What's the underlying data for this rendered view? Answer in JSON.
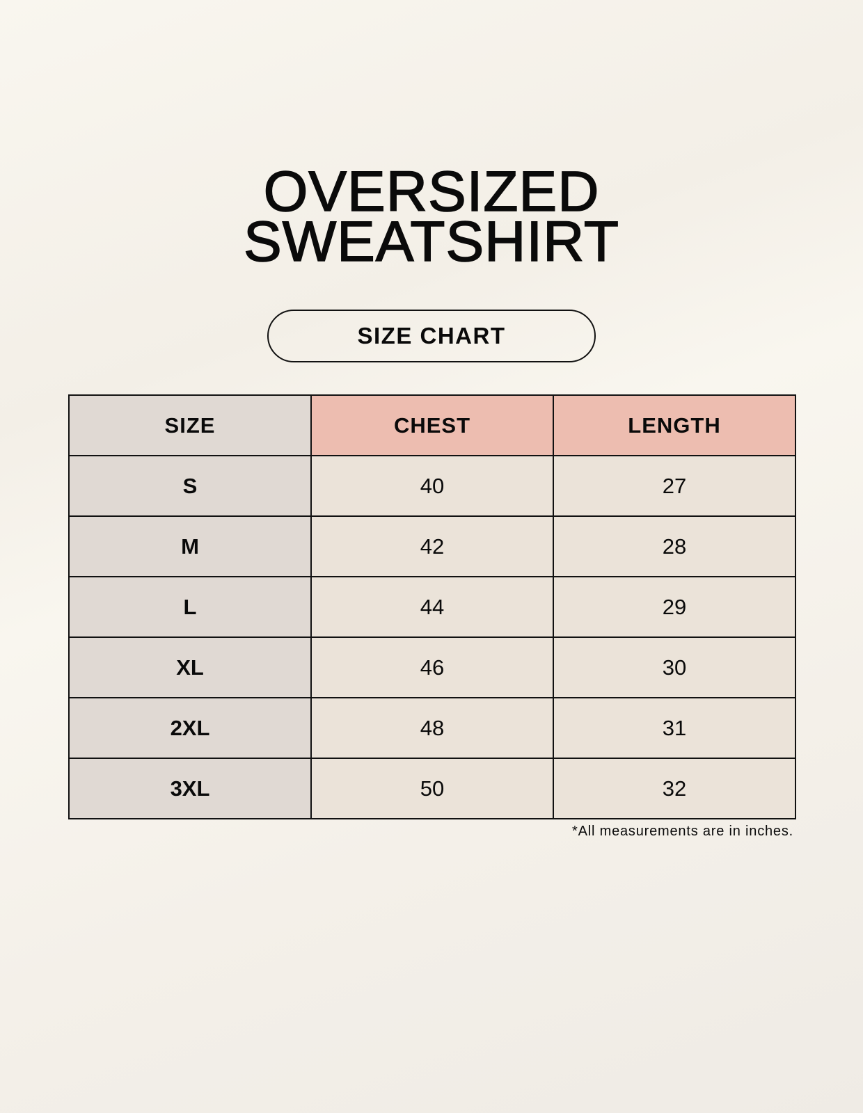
{
  "title_line1": "OVERSIZED",
  "title_line2": "SWEATSHIRT",
  "badge": "SIZE CHART",
  "table": {
    "headers": [
      "SIZE",
      "CHEST",
      "LENGTH"
    ],
    "rows": [
      [
        "S",
        "40",
        "27"
      ],
      [
        "M",
        "42",
        "28"
      ],
      [
        "L",
        "44",
        "29"
      ],
      [
        "XL",
        "46",
        "30"
      ],
      [
        "2XL",
        "48",
        "31"
      ],
      [
        "3XL",
        "50",
        "32"
      ]
    ]
  },
  "note": "*All measurements are in inches.",
  "colors": {
    "size_column": "#e0d9d3",
    "header_accent": "#edbdb0",
    "cell": "#ebe3d9"
  }
}
